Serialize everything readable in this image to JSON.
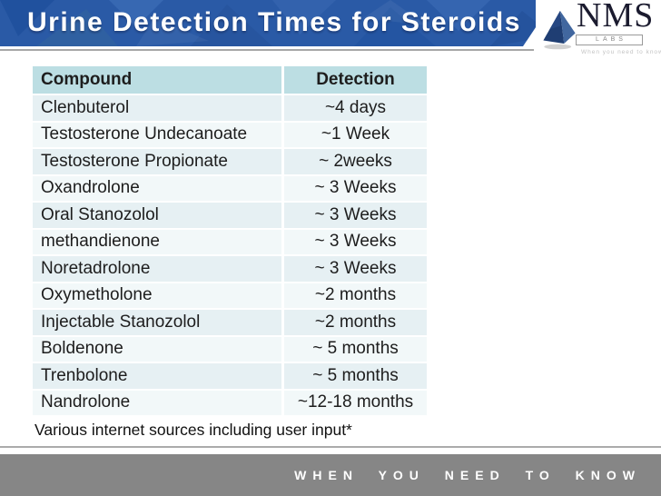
{
  "header": {
    "title": "Urine Detection Times for Steroids",
    "logo": {
      "wordmark": "NMS",
      "sub": "LABS",
      "tagline": "When you need to know",
      "pyramid_icon": "pyramid-icon"
    }
  },
  "table": {
    "columns": [
      "Compound",
      "Detection"
    ],
    "rows": [
      {
        "compound": "Clenbuterol",
        "detection": "~4 days"
      },
      {
        "compound": "Testosterone Undecanoate",
        "detection": "~1 Week"
      },
      {
        "compound": "Testosterone Propionate",
        "detection": "~ 2weeks"
      },
      {
        "compound": "Oxandrolone",
        "detection": "~ 3 Weeks"
      },
      {
        "compound": "Oral Stanozolol",
        "detection": "~ 3 Weeks"
      },
      {
        "compound": "methandienone",
        "detection": "~ 3 Weeks"
      },
      {
        "compound": "Noretadrolone",
        "detection": "~ 3 Weeks"
      },
      {
        "compound": "Oxymetholone",
        "detection": "~2 months"
      },
      {
        "compound": "Injectable Stanozolol",
        "detection": "~2 months"
      },
      {
        "compound": "Boldenone",
        "detection": "~ 5 months"
      },
      {
        "compound": "Trenbolone",
        "detection": "~ 5 months"
      },
      {
        "compound": "Nandrolone",
        "detection": "~12-18 months"
      }
    ]
  },
  "footnote": "Various internet sources including user input*",
  "footer": {
    "tagline": "WHEN YOU NEED TO KNOW"
  },
  "colors": {
    "header_blue": "#2a5aa6",
    "table_header": "#bcdee3",
    "row_odd": "#e6f0f3",
    "row_even": "#f2f8f9",
    "footer_gray": "#868686",
    "logo_navy": "#1b1b2f"
  }
}
